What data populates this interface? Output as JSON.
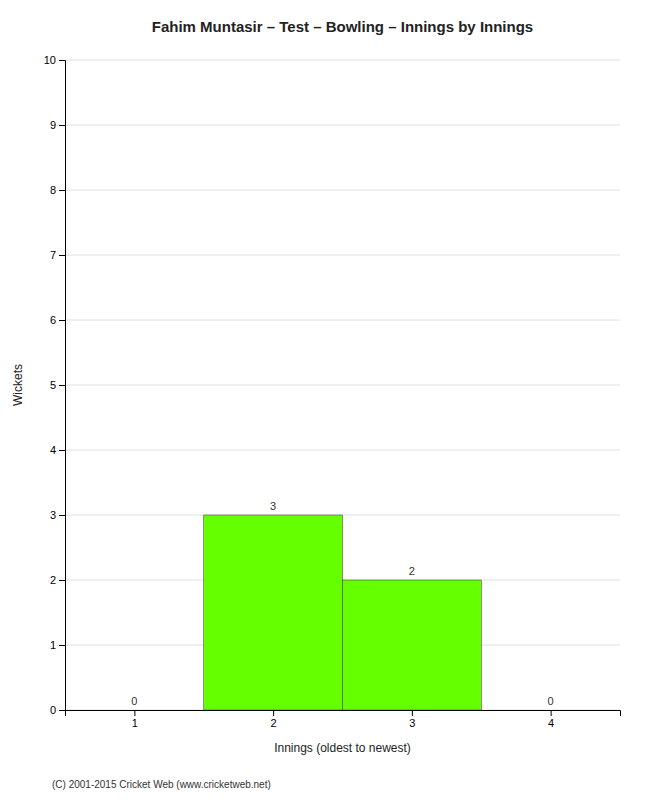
{
  "chart_data": {
    "type": "bar",
    "title": "Fahim Muntasir – Test – Bowling – Innings by Innings",
    "xlabel": "Innings (oldest to newest)",
    "ylabel": "Wickets",
    "x": [
      1,
      2,
      3,
      4
    ],
    "values": [
      0,
      3,
      2,
      0
    ],
    "color": "#66ff00",
    "xlim": [
      0.5,
      4.5
    ],
    "xticks": [
      1,
      2,
      3,
      4
    ],
    "ylim": [
      0,
      10
    ],
    "yticks": [
      0,
      1,
      2,
      3,
      4,
      5,
      6,
      7,
      8,
      9,
      10
    ],
    "grid": true,
    "data_labels": true,
    "footer": "(C) 2001-2015 Cricket Web (www.cricketweb.net)"
  }
}
